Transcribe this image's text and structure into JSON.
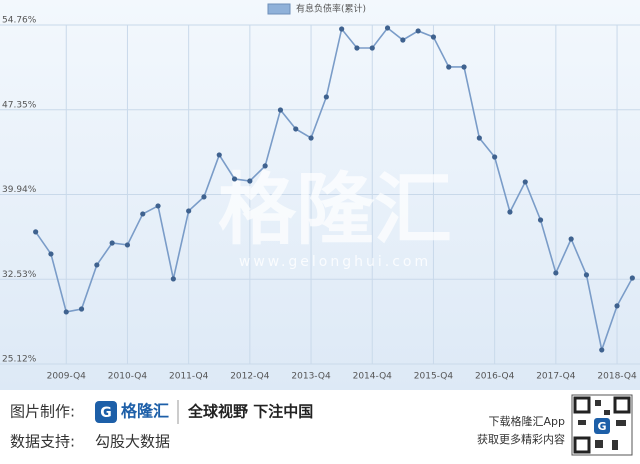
{
  "chart_data": {
    "type": "line",
    "categories": [
      null,
      null,
      "2009-Q4",
      null,
      null,
      null,
      "2010-Q4",
      null,
      null,
      null,
      "2011-Q4",
      null,
      null,
      null,
      "2012-Q4",
      null,
      null,
      null,
      "2013-Q4",
      null,
      null,
      null,
      "2014-Q4",
      null,
      null,
      null,
      "2015-Q4",
      null,
      null,
      null,
      "2016-Q4",
      null,
      null,
      null,
      "2017-Q4",
      null,
      null,
      null,
      "2018-Q4",
      null
    ],
    "series": [
      {
        "name": "有息负债率(累计)",
        "color": "#7a9cc8",
        "marker_color": "#3f628f",
        "values": [
          36.67,
          34.74,
          29.67,
          29.93,
          33.78,
          35.7,
          35.53,
          38.24,
          38.94,
          32.56,
          38.5,
          39.73,
          43.4,
          41.3,
          41.12,
          42.44,
          47.33,
          45.67,
          44.88,
          48.47,
          54.41,
          52.75,
          52.75,
          54.5,
          53.45,
          54.24,
          53.71,
          51.09,
          51.09,
          44.88,
          43.22,
          38.41,
          41.04,
          37.71,
          33.08,
          36.05,
          32.91,
          26.35,
          30.2,
          32.64
        ]
      }
    ],
    "ylim": [
      25.12,
      54.76
    ],
    "yticks": [
      {
        "value": 25.12,
        "label": "25.12%"
      },
      {
        "value": 32.53,
        "label": "32.53%"
      },
      {
        "value": 39.94,
        "label": "39.94%"
      },
      {
        "value": 47.35,
        "label": "47.35%"
      },
      {
        "value": 54.76,
        "label": "54.76%"
      }
    ],
    "grid": true,
    "legend": "top"
  },
  "watermark": {
    "brand": "格隆汇",
    "url": "www.gelonghui.com"
  },
  "footer": {
    "made_by_label": "图片制作:",
    "logo": "格隆汇",
    "slogan": "全球视野 下注中国",
    "data_label": "数据支持:",
    "data_source": "勾股大数据",
    "app_line1": "下载格隆汇App",
    "app_line2": "获取更多精彩内容"
  }
}
